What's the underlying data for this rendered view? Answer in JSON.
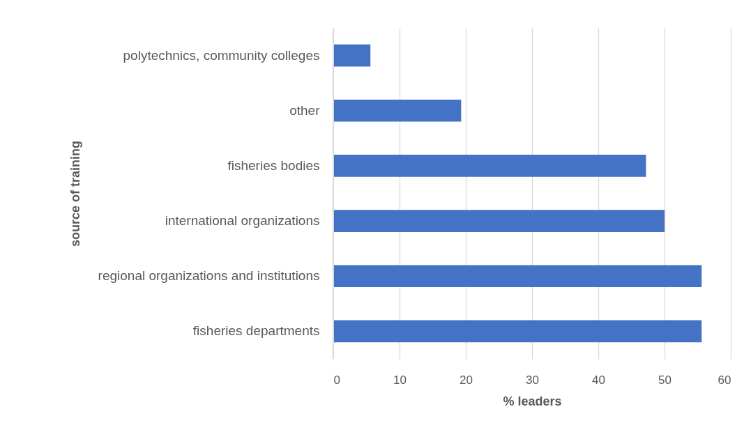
{
  "chart_data": {
    "type": "bar",
    "orientation": "horizontal",
    "xlabel": "% leaders",
    "ylabel": "source of training",
    "categories": [
      "polytechnics, community colleges",
      "other",
      "fisheries bodies",
      "international organizations",
      "regional organizations and institutions",
      "fisheries departments"
    ],
    "values": [
      5.6,
      19.3,
      47.2,
      50.0,
      55.6,
      55.6
    ],
    "color": "#4472c4",
    "xlim": [
      0,
      60
    ],
    "xticks": [
      0,
      10,
      20,
      30,
      40,
      50,
      60
    ],
    "grid": "x"
  }
}
